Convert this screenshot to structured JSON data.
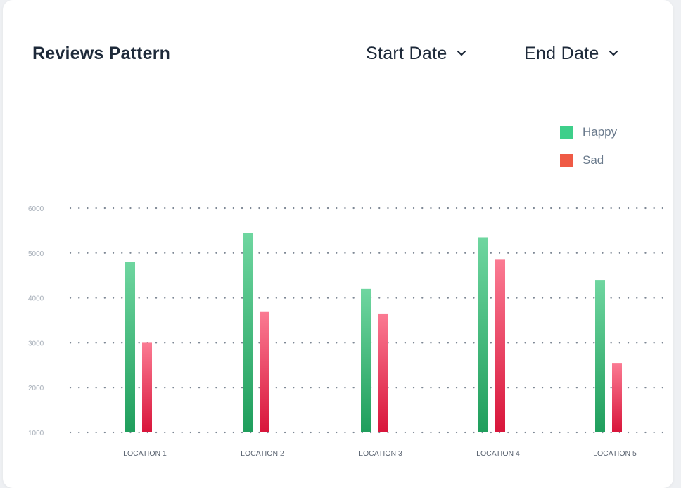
{
  "card": {
    "title": "Reviews Pattern",
    "start_date_label": "Start Date",
    "end_date_label": "End Date"
  },
  "icons": {
    "start_chevron": "chevron-down-icon",
    "end_chevron": "chevron-down-icon"
  },
  "colors": {
    "happy_top": "#6fd6a0",
    "happy_bottom": "#1f9e5c",
    "sad_top": "#fb7b93",
    "sad_bottom": "#d8153a",
    "legend_happy": "#3ecf8a",
    "legend_sad": "#ef5a45",
    "grid_dots": "#7d8794",
    "tick_text": "#a7afb9",
    "category_text": "#5c6572"
  },
  "chart_data": {
    "type": "bar",
    "title": "",
    "xlabel": "",
    "ylabel": "",
    "categories": [
      "LOCATION 1",
      "LOCATION 2",
      "LOCATION 3",
      "LOCATION 4",
      "LOCATION 5"
    ],
    "series": [
      {
        "name": "Happy",
        "values": [
          4800,
          5450,
          4200,
          5350,
          4400
        ]
      },
      {
        "name": "Sad",
        "values": [
          3000,
          3700,
          3650,
          4850,
          2550
        ]
      }
    ],
    "y_ticks": [
      "6000",
      "5000",
      "4000",
      "3000",
      "2000",
      "1000"
    ],
    "ylim": [
      1000,
      6000
    ],
    "grid": true,
    "grid_style": "dotted",
    "legend": "top-right"
  }
}
